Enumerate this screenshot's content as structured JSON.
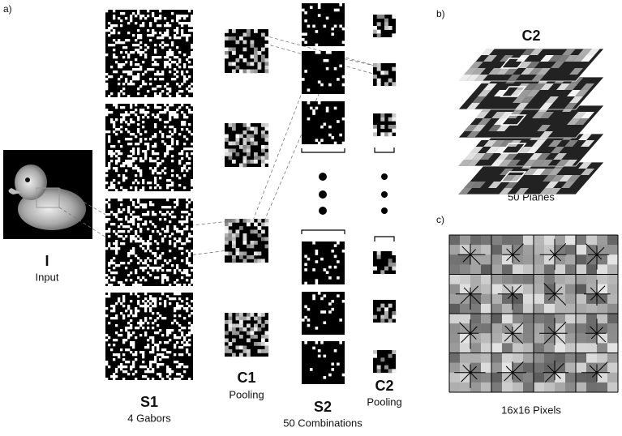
{
  "panel_a": {
    "label": "a)",
    "stages": [
      {
        "name": "I",
        "caption": "Input"
      },
      {
        "name": "S1",
        "caption": "4 Gabors"
      },
      {
        "name": "C1",
        "caption": "Pooling"
      },
      {
        "name": "S2",
        "caption": "50 Combinations"
      },
      {
        "name": "C2",
        "caption": "Pooling"
      }
    ]
  },
  "panel_b": {
    "label": "b)",
    "title": "C2",
    "caption": "50 Planes"
  },
  "panel_c": {
    "label": "c)",
    "caption": "16x16 Pixels"
  }
}
